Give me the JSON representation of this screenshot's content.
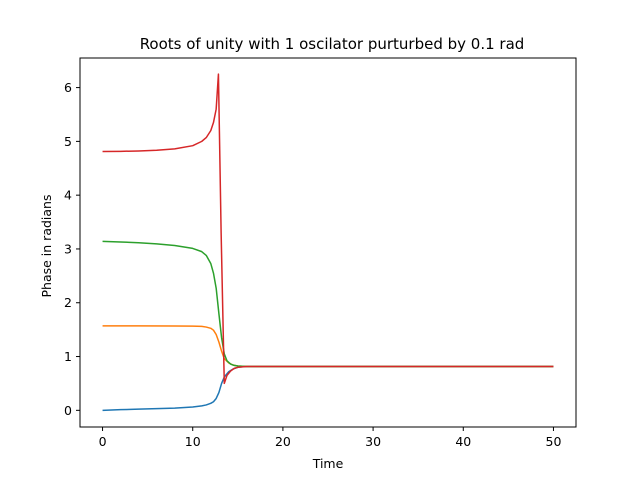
{
  "chart_data": {
    "type": "line",
    "title": "Roots of unity with 1 oscilator purturbed by 0.1 rad",
    "xlabel": "Time",
    "ylabel": "Phase in radians",
    "xlim": [
      -2.5,
      52.5
    ],
    "ylim": [
      -0.31,
      6.55
    ],
    "xticks": [
      0,
      10,
      20,
      30,
      40,
      50
    ],
    "yticks": [
      0,
      1,
      2,
      3,
      4,
      5,
      6
    ],
    "grid": false,
    "legend": "none",
    "series": [
      {
        "color": "#1f77b4",
        "x": [
          0,
          2,
          4,
          6,
          8,
          10,
          11,
          11.5,
          12,
          12.3,
          12.6,
          12.9,
          13.2,
          13.5,
          14,
          14.5,
          15,
          15.5,
          16,
          20,
          30,
          40,
          50
        ],
        "y": [
          0.0,
          0.012,
          0.022,
          0.032,
          0.042,
          0.062,
          0.082,
          0.1,
          0.13,
          0.16,
          0.22,
          0.33,
          0.5,
          0.62,
          0.72,
          0.77,
          0.8,
          0.81,
          0.815,
          0.815,
          0.815,
          0.815,
          0.815
        ]
      },
      {
        "color": "#ff7f0e",
        "x": [
          0,
          4,
          8,
          10,
          11,
          11.5,
          12,
          12.3,
          12.6,
          12.9,
          13.2,
          13.5,
          14,
          14.5,
          15,
          16,
          20,
          30,
          40,
          50
        ],
        "y": [
          1.571,
          1.571,
          1.568,
          1.565,
          1.56,
          1.548,
          1.525,
          1.49,
          1.41,
          1.27,
          1.1,
          0.96,
          0.88,
          0.84,
          0.825,
          0.815,
          0.815,
          0.815,
          0.815,
          0.815
        ]
      },
      {
        "color": "#2ca02c",
        "x": [
          0,
          2,
          4,
          6,
          8,
          10,
          11,
          11.5,
          12,
          12.3,
          12.6,
          12.9,
          13.2,
          13.5,
          13.8,
          14.2,
          14.6,
          15,
          16,
          20,
          30,
          40,
          50
        ],
        "y": [
          3.142,
          3.13,
          3.115,
          3.095,
          3.065,
          3.01,
          2.95,
          2.88,
          2.73,
          2.55,
          2.27,
          1.8,
          1.35,
          1.05,
          0.92,
          0.86,
          0.835,
          0.825,
          0.815,
          0.815,
          0.815,
          0.815,
          0.815
        ]
      },
      {
        "color": "#d62728",
        "x": [
          0,
          2,
          4,
          6,
          8,
          10,
          11,
          11.5,
          12,
          12.3,
          12.6,
          12.85,
          13.15,
          13.5,
          13.8,
          14.2,
          14.6,
          15,
          16,
          20,
          30,
          40,
          50
        ],
        "y": [
          4.812,
          4.815,
          4.822,
          4.835,
          4.86,
          4.92,
          5.0,
          5.07,
          5.2,
          5.35,
          5.6,
          6.25,
          3.3,
          0.5,
          0.65,
          0.73,
          0.78,
          0.8,
          0.815,
          0.815,
          0.815,
          0.815,
          0.815
        ]
      }
    ]
  }
}
